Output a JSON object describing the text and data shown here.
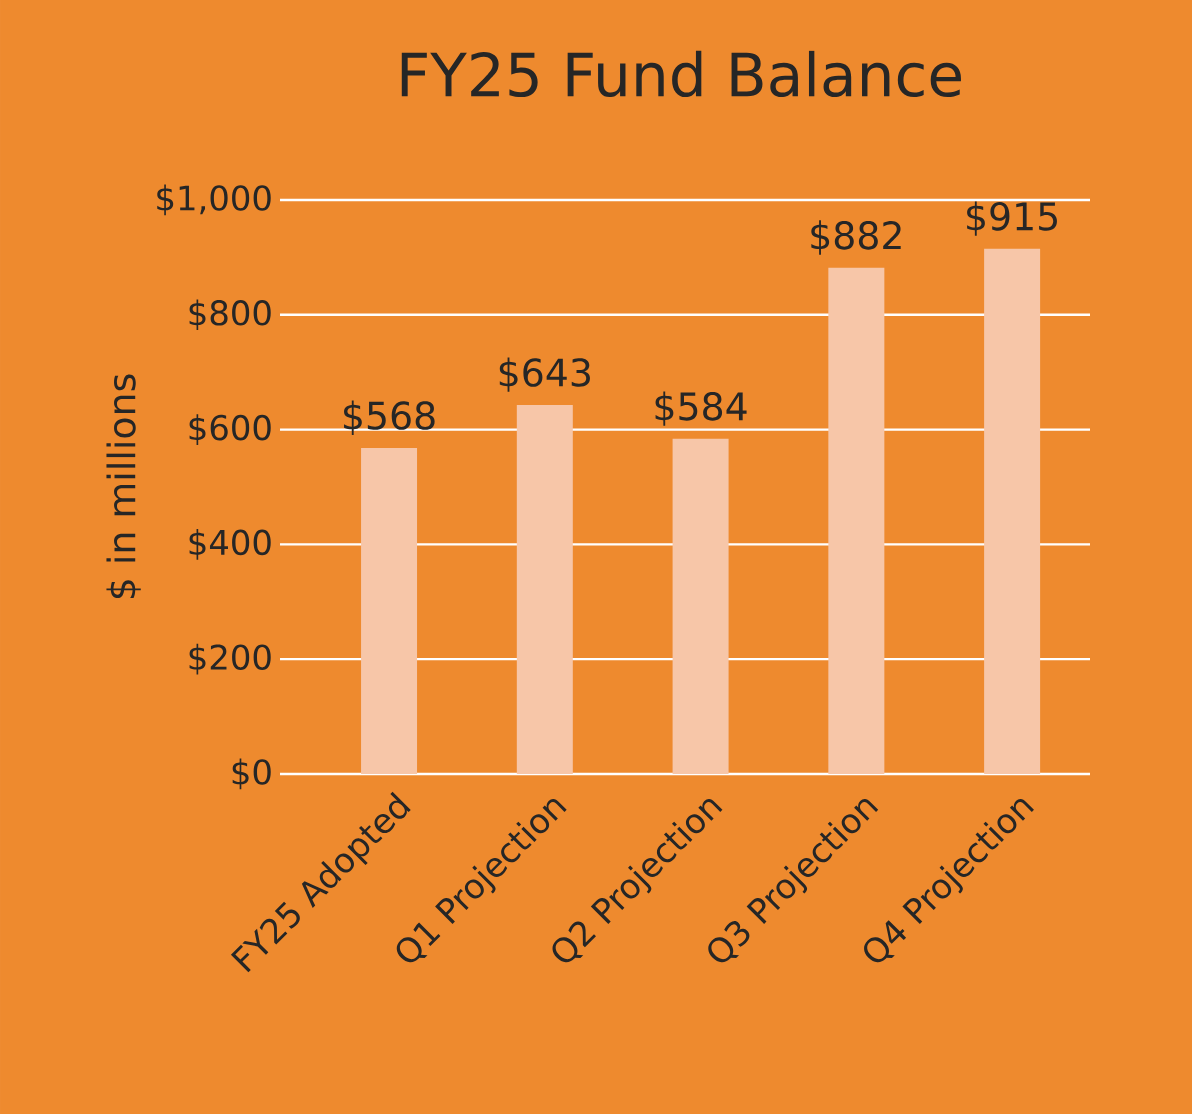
{
  "chart_data": {
    "type": "bar",
    "title": "FY25 Fund Balance",
    "ylabel": "$ in millions",
    "categories": [
      "FY25 Adopted",
      "Q1 Projection",
      "Q2 Projection",
      "Q3 Projection",
      "Q4 Projection"
    ],
    "values": [
      568,
      643,
      584,
      882,
      915
    ],
    "value_labels": [
      "$568",
      "$643",
      "$584",
      "$882",
      "$915"
    ],
    "color": "#f7c6a8",
    "ylim": [
      0,
      1000
    ],
    "yticks": [
      {
        "value": 0,
        "label": "$0"
      },
      {
        "value": 200,
        "label": "$200"
      },
      {
        "value": 400,
        "label": "$400"
      },
      {
        "value": 600,
        "label": "$600"
      },
      {
        "value": 800,
        "label": "$800"
      },
      {
        "value": 1000,
        "label": "$1,000"
      }
    ],
    "grid": "y"
  }
}
